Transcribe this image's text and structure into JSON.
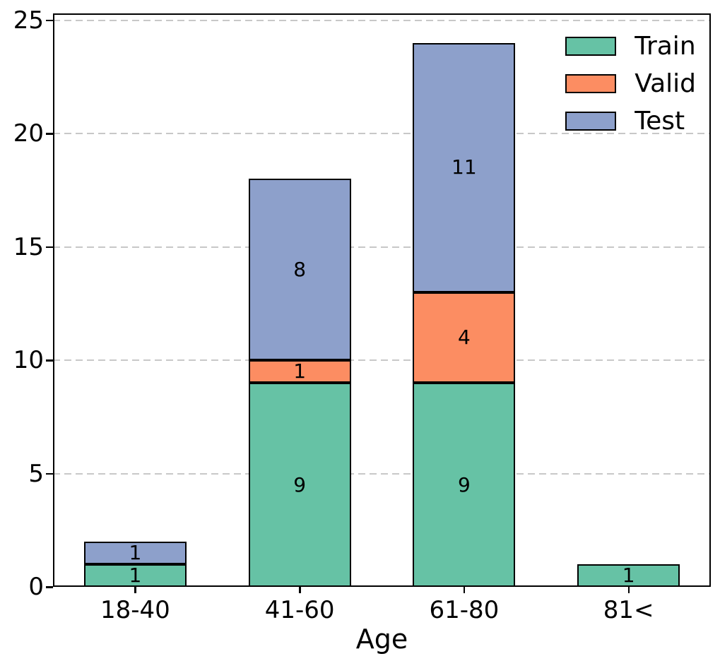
{
  "chart_data": {
    "type": "bar",
    "stacked": true,
    "title": "",
    "xlabel": "Age",
    "ylabel": "",
    "categories": [
      "18-40",
      "41-60",
      "61-80",
      "81<"
    ],
    "series": [
      {
        "name": "Train",
        "color": "#66c2a5",
        "values": [
          1,
          9,
          9,
          1
        ]
      },
      {
        "name": "Valid",
        "color": "#fc8d62",
        "values": [
          0,
          1,
          4,
          0
        ]
      },
      {
        "name": "Test",
        "color": "#8da0cb",
        "values": [
          1,
          8,
          11,
          0
        ]
      }
    ],
    "bar_totals": [
      2,
      18,
      24,
      1
    ],
    "segment_labels": "value shown centered in each nonzero segment",
    "ylim": [
      0,
      25.3
    ],
    "yticks": [
      0,
      5,
      10,
      15,
      20,
      25
    ],
    "grid": "horizontal dashed",
    "grid_color": "#c8c8c8",
    "bar_edge_color": "#000000",
    "text_color": "#000000",
    "background_color": "#ffffff",
    "legend_position": "upper right",
    "legend_frame": false
  }
}
